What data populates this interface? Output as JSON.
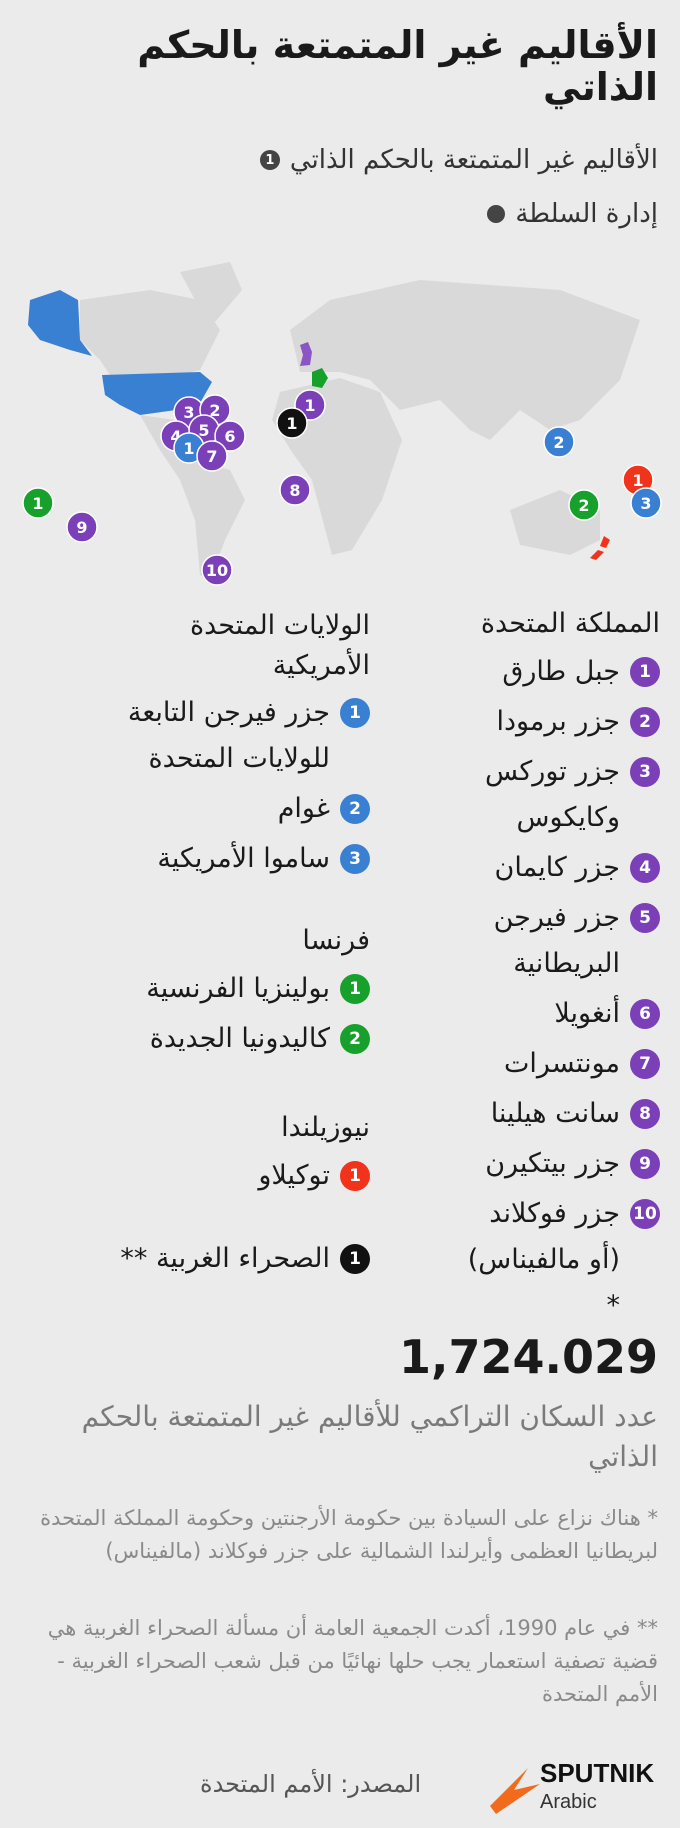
{
  "header": {
    "title": "الأقاليم غير المتمتعة بالحكم الذاتي"
  },
  "legend": [
    {
      "marker": "1",
      "label": "الأقاليم غير المتمتعة بالحكم الذاتي"
    },
    {
      "label": "إدارة السلطة"
    }
  ],
  "map": {
    "markers": [
      {
        "label": "1",
        "color": "#7b3fb7"
      },
      {
        "label": "1",
        "color": "#111111"
      },
      {
        "label": "3",
        "color": "#7b3fb7"
      },
      {
        "label": "2",
        "color": "#7b3fb7"
      },
      {
        "label": "4",
        "color": "#7b3fb7"
      },
      {
        "label": "5",
        "color": "#7b3fb7"
      },
      {
        "label": "6",
        "color": "#7b3fb7"
      },
      {
        "label": "1",
        "color": "#3a80d2"
      },
      {
        "label": "7",
        "color": "#7b3fb7"
      },
      {
        "label": "8",
        "color": "#7b3fb7"
      },
      {
        "label": "1",
        "color": "#17a02b"
      },
      {
        "label": "9",
        "color": "#7b3fb7"
      },
      {
        "label": "10",
        "color": "#7b3fb7"
      },
      {
        "label": "2",
        "color": "#3a80d2"
      },
      {
        "label": "2",
        "color": "#17a02b"
      },
      {
        "label": "1",
        "color": "#f0331a"
      },
      {
        "label": "3",
        "color": "#3a80d2"
      }
    ]
  },
  "groups": [
    {
      "title": "المملكة المتحدة",
      "color": "#7b3fb7",
      "items": [
        {
          "marker": "1",
          "label": "جبل طارق"
        },
        {
          "marker": "2",
          "label": "جزر برمودا"
        },
        {
          "marker": "3",
          "label": "جزر توركس وكايكوس"
        },
        {
          "marker": "4",
          "label": "جزر كايمان"
        },
        {
          "marker": "5",
          "label": "جزر فيرجن البريطانية"
        },
        {
          "marker": "6",
          "label": "أنغويلا"
        },
        {
          "marker": "7",
          "label": "مونتسرات"
        },
        {
          "marker": "8",
          "label": "سانت هيلينا"
        },
        {
          "marker": "9",
          "label": "جزر بيتكيرن"
        },
        {
          "marker": "10",
          "label": "جزر فوكلاند (أو مالفيناس) *"
        }
      ]
    },
    {
      "title": "الولايات المتحدة الأمريكية",
      "color": "#3a80d2",
      "items": [
        {
          "marker": "1",
          "label": "جزر فيرجن التابعة للولايات المتحدة"
        },
        {
          "marker": "2",
          "label": "غوام"
        },
        {
          "marker": "3",
          "label": "ساموا الأمريكية"
        }
      ]
    },
    {
      "title": "فرنسا",
      "color": "#17a02b",
      "items": [
        {
          "marker": "1",
          "label": "بولينزيا الفرنسية"
        },
        {
          "marker": "2",
          "label": "كاليدونيا الجديدة"
        }
      ]
    },
    {
      "title": "نيوزيلندا",
      "color": "#f0331a",
      "items": [
        {
          "marker": "1",
          "label": "توكيلاو"
        }
      ]
    },
    {
      "color": "#111111",
      "items": [
        {
          "marker": "1",
          "label": "الصحراء الغربية **"
        }
      ]
    }
  ],
  "stats": {
    "value": "1,724.029",
    "label": "عدد السكان التراكمي للأقاليم غير المتمتعة بالحكم الذاتي"
  },
  "notes": [
    "* هناك نزاع على السيادة بين حكومة الأرجنتين وحكومة المملكة المتحدة لبريطانيا العظمى وأيرلندا الشمالية على جزر فوكلاند (مالفيناس)",
    "** في عام 1990، أكدت الجمعية العامة أن مسألة الصحراء الغربية هي قضية تصفية استعمار يجب حلها نهائيًا من قبل شعب الصحراء الغربية - الأمم المتحدة"
  ],
  "source": "المصدر: الأمم المتحدة",
  "logo": {
    "name": "SPUTNIK",
    "sub": "Arabic"
  }
}
